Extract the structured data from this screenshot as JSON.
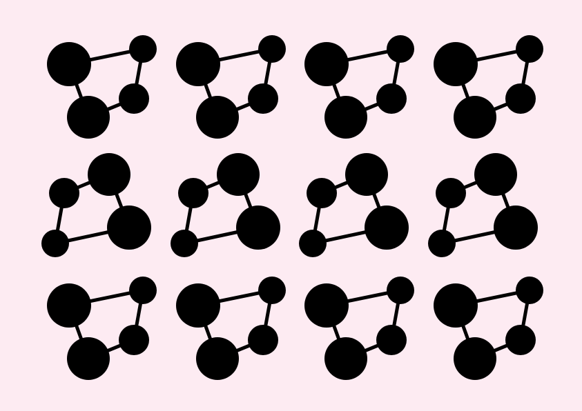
{
  "background_color": "#fdebf2",
  "glyph_color": "#000000",
  "icon": "molecule-icon",
  "grid": {
    "rows": 3,
    "columns": 4,
    "row_variants": [
      "molecule-a",
      "molecule-b",
      "molecule-a"
    ]
  }
}
